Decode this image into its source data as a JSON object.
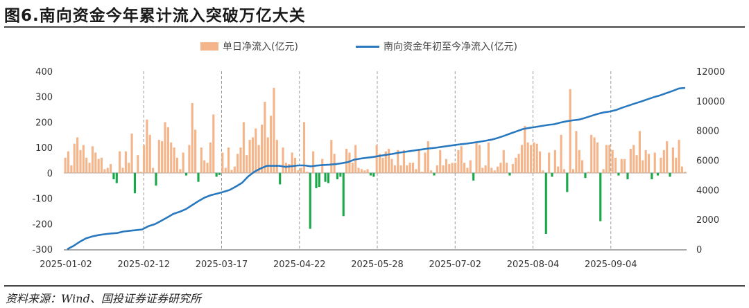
{
  "title": "图6.南向资金今年累计流入突破万亿大关",
  "source": "资料来源：Wind、国投证券证券研究所",
  "legend": {
    "bar_label": "单日净流入(亿元)",
    "line_label": "南向资金年初至今净流入(亿元)"
  },
  "colors": {
    "bar_positive": "#f5b58a",
    "bar_negative": "#1aa84a",
    "line": "#2878c0"
  },
  "chart_data": {
    "type": "bar+line",
    "left_axis": {
      "ylim": [
        -300,
        400
      ],
      "ticks": [
        "400",
        "300",
        "200",
        "100",
        "0",
        "-100",
        "-200",
        "-300"
      ]
    },
    "right_axis": {
      "ylim": [
        0,
        12000
      ],
      "ticks": [
        "12000",
        "10000",
        "8000",
        "6000",
        "4000",
        "2000",
        "0"
      ]
    },
    "x_tick_labels": [
      "2025-01-02",
      "2025-02-12",
      "2025-03-17",
      "2025-04-22",
      "2025-05-28",
      "2025-07-02",
      "2025-08-04",
      "2025-09-04"
    ],
    "series": [
      {
        "name": "单日净流入(亿元)",
        "type": "bar",
        "values": [
          60,
          85,
          30,
          115,
          140,
          90,
          110,
          60,
          40,
          105,
          80,
          55,
          60,
          15,
          20,
          35,
          -25,
          -40,
          85,
          20,
          85,
          40,
          155,
          -80,
          70,
          5,
          110,
          210,
          150,
          20,
          -50,
          130,
          125,
          200,
          180,
          120,
          100,
          60,
          15,
          80,
          -10,
          110,
          275,
          170,
          -35,
          100,
          50,
          40,
          120,
          230,
          -15,
          -8,
          80,
          20,
          100,
          12,
          25,
          75,
          100,
          200,
          70,
          130,
          140,
          175,
          110,
          190,
          280,
          140,
          225,
          335,
          130,
          -45,
          100,
          40,
          35,
          80,
          60,
          10,
          20,
          200,
          5,
          -220,
          85,
          -60,
          -55,
          55,
          -35,
          -40,
          130,
          75,
          -25,
          -15,
          -170,
          95,
          80,
          40,
          110,
          20,
          15,
          10,
          15,
          -10,
          -15,
          110,
          75,
          60,
          85,
          95,
          55,
          30,
          90,
          30,
          90,
          30,
          40,
          40,
          15,
          95,
          5,
          80,
          125,
          10,
          -10,
          30,
          90,
          30,
          55,
          35,
          40,
          40,
          90,
          105,
          40,
          20,
          50,
          -30,
          120,
          110,
          20,
          30,
          120,
          20,
          10,
          25,
          40,
          90,
          40,
          -10,
          35,
          60,
          75,
          110,
          185,
          120,
          110,
          120,
          115,
          85,
          10,
          -240,
          80,
          -15,
          90,
          25,
          150,
          15,
          -75,
          330,
          15,
          165,
          90,
          50,
          -20,
          5,
          150,
          140,
          120,
          -190,
          15,
          110,
          110,
          90,
          60,
          -10,
          55,
          55,
          -25,
          95,
          110,
          70,
          165,
          50,
          90,
          75,
          -25,
          80,
          -10,
          60,
          90,
          125,
          -15,
          100,
          60,
          130,
          25,
          5
        ]
      },
      {
        "name": "南向资金年初至今净流入(亿元)",
        "type": "line",
        "points": [
          [
            0,
            0
          ],
          [
            5,
            220
          ],
          [
            10,
            500
          ],
          [
            15,
            730
          ],
          [
            20,
            860
          ],
          [
            25,
            950
          ],
          [
            30,
            1010
          ],
          [
            35,
            1060
          ],
          [
            40,
            1090
          ],
          [
            45,
            1190
          ],
          [
            50,
            1240
          ],
          [
            55,
            1280
          ],
          [
            60,
            1330
          ],
          [
            65,
            1550
          ],
          [
            70,
            1680
          ],
          [
            75,
            1900
          ],
          [
            80,
            2140
          ],
          [
            85,
            2380
          ],
          [
            90,
            2520
          ],
          [
            95,
            2700
          ],
          [
            100,
            2970
          ],
          [
            105,
            3240
          ],
          [
            110,
            3480
          ],
          [
            115,
            3640
          ],
          [
            120,
            3750
          ],
          [
            125,
            3860
          ],
          [
            130,
            3990
          ],
          [
            135,
            4220
          ],
          [
            140,
            4480
          ],
          [
            145,
            4910
          ],
          [
            150,
            5230
          ],
          [
            155,
            5450
          ],
          [
            160,
            5620
          ],
          [
            165,
            5620
          ],
          [
            170,
            5620
          ],
          [
            175,
            5550
          ],
          [
            180,
            5600
          ],
          [
            185,
            5650
          ],
          [
            190,
            5650
          ],
          [
            195,
            5590
          ],
          [
            200,
            5640
          ],
          [
            205,
            5680
          ],
          [
            210,
            5700
          ],
          [
            215,
            5740
          ],
          [
            220,
            5800
          ],
          [
            225,
            5880
          ],
          [
            230,
            6040
          ],
          [
            235,
            6110
          ],
          [
            240,
            6170
          ],
          [
            245,
            6220
          ],
          [
            250,
            6290
          ],
          [
            255,
            6360
          ],
          [
            260,
            6420
          ],
          [
            265,
            6500
          ],
          [
            270,
            6560
          ],
          [
            275,
            6620
          ],
          [
            280,
            6680
          ],
          [
            285,
            6740
          ],
          [
            290,
            6800
          ],
          [
            295,
            6840
          ],
          [
            300,
            6900
          ],
          [
            305,
            6960
          ],
          [
            310,
            7020
          ],
          [
            315,
            7080
          ],
          [
            320,
            7120
          ],
          [
            325,
            7180
          ],
          [
            330,
            7240
          ],
          [
            335,
            7310
          ],
          [
            340,
            7390
          ],
          [
            345,
            7510
          ],
          [
            350,
            7650
          ],
          [
            355,
            7800
          ],
          [
            360,
            7950
          ],
          [
            365,
            8100
          ],
          [
            370,
            8180
          ],
          [
            375,
            8240
          ],
          [
            380,
            8310
          ],
          [
            385,
            8380
          ],
          [
            390,
            8430
          ],
          [
            395,
            8540
          ],
          [
            400,
            8630
          ],
          [
            405,
            8690
          ],
          [
            410,
            8740
          ],
          [
            415,
            8860
          ],
          [
            420,
            9000
          ],
          [
            425,
            9130
          ],
          [
            430,
            9230
          ],
          [
            435,
            9290
          ],
          [
            440,
            9400
          ],
          [
            445,
            9560
          ],
          [
            450,
            9700
          ],
          [
            455,
            9840
          ],
          [
            460,
            9970
          ],
          [
            465,
            10120
          ],
          [
            470,
            10260
          ],
          [
            475,
            10380
          ],
          [
            480,
            10530
          ],
          [
            485,
            10680
          ],
          [
            490,
            10840
          ],
          [
            495,
            10880
          ]
        ]
      }
    ]
  }
}
